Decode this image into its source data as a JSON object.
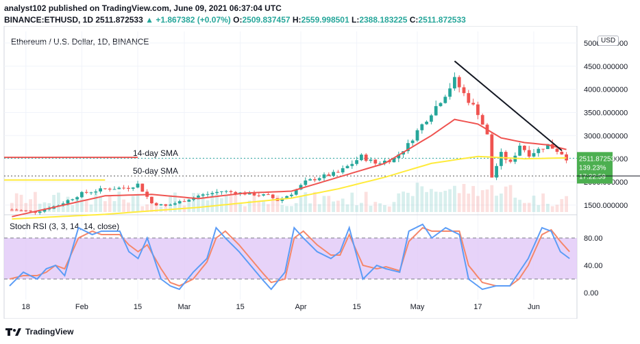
{
  "header": {
    "publisher": "analyst102 published on TradingView.com, June 09, 2021 06:37:04 UTC",
    "symbol": "BINANCE:ETHUSD, 1D",
    "last": "2511.872533",
    "change": "+1.867382 (+0.07%)",
    "o_label": "O:",
    "o_value": "2509.837457",
    "h_label": "H:",
    "h_value": "2559.998501",
    "l_label": "L:",
    "l_value": "2388.183225",
    "c_label": "C:",
    "c_value": "2511.872533"
  },
  "pane_title": "Ethereum / U.S. Dollar, 1D, BINANCE",
  "currency_button": "USD",
  "footer_brand": "TradingView",
  "colors": {
    "up": "#26a69a",
    "down": "#ef5350",
    "sma14": "#ef5350",
    "sma50": "#ffeb3b",
    "trend": "#131722",
    "stoch_k": "#5b9cf6",
    "stoch_d": "#f5876a",
    "rsi_band": "#e1c8f7",
    "price_tag": "#4caf50"
  },
  "chart_data": {
    "type": "candlestick",
    "title": "Ethereum / U.S. Dollar, 1D, BINANCE",
    "y_axis_ticks": [
      "1500.000000",
      "2000.000000",
      "2500.000000",
      "3000.000000",
      "3500.000000",
      "4000.000000",
      "4500.000000",
      "5000.000000"
    ],
    "y_tick_values": [
      1500,
      2000,
      2500,
      3000,
      3500,
      4000,
      4500,
      5000
    ],
    "ylim": [
      1350,
      5250
    ],
    "x_axis_ticks": [
      "18",
      "Feb",
      "15",
      "Mar",
      "15",
      "Apr",
      "15",
      "May",
      "17",
      "Jun"
    ],
    "x_tick_index": [
      3,
      15,
      27,
      37,
      49,
      62,
      74,
      87,
      100,
      112
    ],
    "n_days": 120,
    "annotations": [
      {
        "text": "14-day SMA",
        "level": 2515
      },
      {
        "text": "50-day SMA",
        "level": 2130
      }
    ],
    "reference_lines": [
      {
        "style": "solid",
        "color": "#ef5350",
        "value": 2530,
        "from_index": 0,
        "to_index": 27
      },
      {
        "style": "solid",
        "color": "#ffeb3b",
        "value": 2040,
        "from_index": 0,
        "to_index": 20
      },
      {
        "style": "dotted",
        "color": "#26a69a",
        "value": 2511.87
      },
      {
        "style": "dotted",
        "color": "#555555",
        "value": 2130
      }
    ],
    "trend_line": {
      "from_index": 95,
      "from_value": 4610,
      "to_index": 118,
      "to_value": 2680
    },
    "price_label": {
      "value": "2511.872533",
      "pct": "139.23%",
      "countdown": "17:22:59"
    },
    "close_keypoints": [
      [
        0,
        1400
      ],
      [
        5,
        1350
      ],
      [
        10,
        1500
      ],
      [
        15,
        1750
      ],
      [
        20,
        1850
      ],
      [
        25,
        1880
      ],
      [
        27,
        1950
      ],
      [
        30,
        1540
      ],
      [
        33,
        1480
      ],
      [
        37,
        1600
      ],
      [
        40,
        1700
      ],
      [
        45,
        1800
      ],
      [
        50,
        1750
      ],
      [
        55,
        1700
      ],
      [
        57,
        1600
      ],
      [
        60,
        1750
      ],
      [
        63,
        2000
      ],
      [
        66,
        2100
      ],
      [
        70,
        2200
      ],
      [
        73,
        2400
      ],
      [
        75,
        2550
      ],
      [
        78,
        2400
      ],
      [
        82,
        2500
      ],
      [
        85,
        2800
      ],
      [
        87,
        3100
      ],
      [
        90,
        3500
      ],
      [
        93,
        3900
      ],
      [
        95,
        4200
      ],
      [
        97,
        3900
      ],
      [
        100,
        3500
      ],
      [
        102,
        3000
      ],
      [
        103,
        2100
      ],
      [
        105,
        2600
      ],
      [
        107,
        2400
      ],
      [
        109,
        2800
      ],
      [
        111,
        2600
      ],
      [
        113,
        2700
      ],
      [
        115,
        2800
      ],
      [
        118,
        2620
      ],
      [
        119,
        2512
      ]
    ],
    "sma14_keypoints": [
      [
        0,
        1250
      ],
      [
        20,
        1700
      ],
      [
        30,
        1730
      ],
      [
        40,
        1640
      ],
      [
        50,
        1760
      ],
      [
        60,
        1800
      ],
      [
        70,
        2100
      ],
      [
        80,
        2400
      ],
      [
        90,
        3000
      ],
      [
        95,
        3350
      ],
      [
        100,
        3250
      ],
      [
        105,
        2950
      ],
      [
        110,
        2850
      ],
      [
        115,
        2800
      ],
      [
        119,
        2700
      ]
    ],
    "sma50_keypoints": [
      [
        0,
        1200
      ],
      [
        20,
        1300
      ],
      [
        40,
        1450
      ],
      [
        60,
        1650
      ],
      [
        70,
        1850
      ],
      [
        80,
        2100
      ],
      [
        90,
        2400
      ],
      [
        100,
        2550
      ],
      [
        110,
        2500
      ],
      [
        119,
        2520
      ]
    ],
    "indicator": {
      "name": "Stoch RSI (3, 3, 14, 14, close)",
      "y_axis_ticks": [
        "0.00",
        "40.00",
        "80.00"
      ],
      "y_tick_values": [
        0,
        40,
        80
      ],
      "ylim": [
        -10,
        110
      ],
      "band": [
        20,
        80
      ],
      "k_keypoints": [
        [
          0,
          10
        ],
        [
          3,
          30
        ],
        [
          6,
          20
        ],
        [
          8,
          35
        ],
        [
          10,
          40
        ],
        [
          12,
          25
        ],
        [
          15,
          95
        ],
        [
          18,
          85
        ],
        [
          20,
          90
        ],
        [
          24,
          90
        ],
        [
          26,
          60
        ],
        [
          28,
          50
        ],
        [
          30,
          80
        ],
        [
          33,
          20
        ],
        [
          35,
          10
        ],
        [
          37,
          5
        ],
        [
          40,
          30
        ],
        [
          43,
          50
        ],
        [
          45,
          95
        ],
        [
          47,
          80
        ],
        [
          50,
          60
        ],
        [
          55,
          20
        ],
        [
          57,
          5
        ],
        [
          60,
          30
        ],
        [
          62,
          95
        ],
        [
          64,
          80
        ],
        [
          67,
          60
        ],
        [
          70,
          50
        ],
        [
          72,
          60
        ],
        [
          74,
          95
        ],
        [
          77,
          20
        ],
        [
          80,
          40
        ],
        [
          82,
          35
        ],
        [
          85,
          30
        ],
        [
          87,
          90
        ],
        [
          90,
          100
        ],
        [
          92,
          80
        ],
        [
          95,
          95
        ],
        [
          98,
          85
        ],
        [
          100,
          20
        ],
        [
          103,
          5
        ],
        [
          106,
          10
        ],
        [
          109,
          10
        ],
        [
          111,
          30
        ],
        [
          113,
          50
        ],
        [
          116,
          95
        ],
        [
          118,
          90
        ],
        [
          120,
          60
        ],
        [
          122,
          50
        ]
      ],
      "d_keypoints": [
        [
          0,
          20
        ],
        [
          3,
          25
        ],
        [
          6,
          25
        ],
        [
          8,
          30
        ],
        [
          10,
          40
        ],
        [
          12,
          35
        ],
        [
          15,
          80
        ],
        [
          18,
          90
        ],
        [
          20,
          85
        ],
        [
          24,
          85
        ],
        [
          26,
          70
        ],
        [
          28,
          60
        ],
        [
          30,
          70
        ],
        [
          33,
          35
        ],
        [
          35,
          15
        ],
        [
          37,
          10
        ],
        [
          40,
          20
        ],
        [
          43,
          45
        ],
        [
          45,
          80
        ],
        [
          47,
          90
        ],
        [
          50,
          70
        ],
        [
          55,
          30
        ],
        [
          57,
          15
        ],
        [
          60,
          20
        ],
        [
          62,
          80
        ],
        [
          64,
          90
        ],
        [
          67,
          70
        ],
        [
          70,
          55
        ],
        [
          72,
          55
        ],
        [
          74,
          85
        ],
        [
          77,
          40
        ],
        [
          80,
          35
        ],
        [
          82,
          38
        ],
        [
          85,
          32
        ],
        [
          87,
          75
        ],
        [
          90,
          95
        ],
        [
          92,
          90
        ],
        [
          95,
          90
        ],
        [
          98,
          90
        ],
        [
          100,
          40
        ],
        [
          103,
          15
        ],
        [
          106,
          10
        ],
        [
          109,
          10
        ],
        [
          111,
          20
        ],
        [
          113,
          40
        ],
        [
          116,
          85
        ],
        [
          118,
          92
        ],
        [
          120,
          75
        ],
        [
          122,
          60
        ]
      ]
    }
  }
}
